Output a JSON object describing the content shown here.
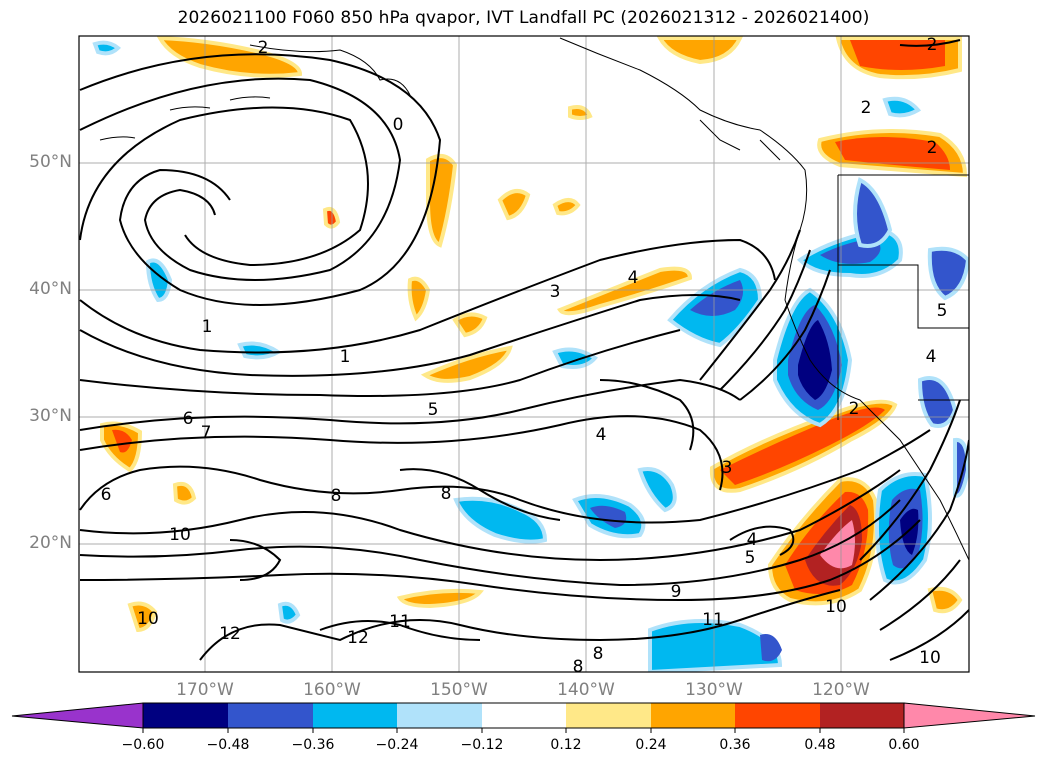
{
  "title": "2026021100 F060 850 hPa qvapor, IVT Landfall PC (2026021312 - 2026021400)",
  "map": {
    "lat_labels": [
      "50°N",
      "40°N",
      "30°N",
      "20°N"
    ],
    "lon_labels": [
      "170°W",
      "160°W",
      "150°W",
      "140°W",
      "130°W",
      "120°W"
    ],
    "contour_labels": [
      "2",
      "2",
      "0",
      "1",
      "1",
      "3",
      "4",
      "5",
      "6",
      "7",
      "6",
      "8",
      "8",
      "10",
      "4",
      "4",
      "5",
      "3",
      "2",
      "2",
      "2",
      "4",
      "5",
      "9",
      "10",
      "11",
      "11",
      "12",
      "12",
      "10",
      "8",
      "8",
      "10"
    ]
  },
  "colorbar": {
    "tick_labels": [
      "−0.60",
      "−0.48",
      "−0.36",
      "−0.24",
      "−0.12",
      "0.12",
      "0.24",
      "0.36",
      "0.48",
      "0.60"
    ],
    "colors": [
      "#9933cc",
      "#000080",
      "#3355cc",
      "#00b8f0",
      "#b0e2fa",
      "#ffffff",
      "#ffe888",
      "#ffa500",
      "#ff4500",
      "#b22222",
      "#ff88aa"
    ]
  }
}
